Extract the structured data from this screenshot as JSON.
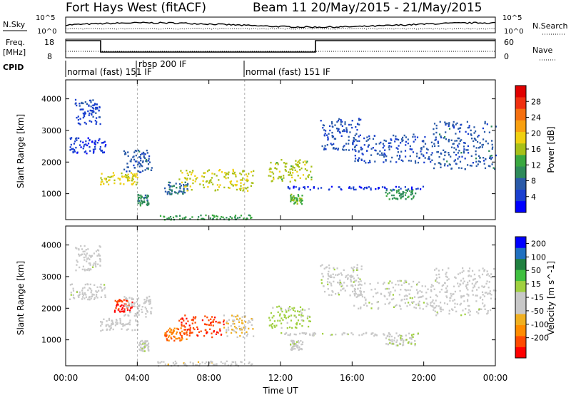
{
  "header": {
    "station": "Fort Hays West (fitACF)",
    "beam_and_dates": "Beam 11  20/May/2015 - 21/May/2015"
  },
  "noise_panel": {
    "left_label": "N.Sky",
    "right_label": "N.Search",
    "y_ticks": [
      "10^5",
      "10^0"
    ]
  },
  "freq_panel": {
    "left_label_line1": "Freq.",
    "left_label_line2": "[MHz]",
    "left_ticks": [
      "18",
      "8"
    ],
    "right_label": "Nave",
    "right_ticks": [
      "60",
      "0"
    ]
  },
  "cpid": {
    "label": "CPID",
    "modes": [
      {
        "text": "normal (fast) 151 IF",
        "start_hour": 0
      },
      {
        "text": "rbsp 200 IF",
        "start_hour": 4
      },
      {
        "text": "normal (fast) 151 IF",
        "start_hour": 10
      }
    ]
  },
  "x_axis": {
    "label": "Time UT",
    "ticks": [
      "00:00",
      "04:00",
      "08:00",
      "12:00",
      "16:00",
      "20:00",
      "00:00"
    ]
  },
  "colors": {
    "power_scale": [
      "#0000ff",
      "#1a3fd0",
      "#2a5aa8",
      "#2e8a5a",
      "#3aa840",
      "#a8c018",
      "#f0d010",
      "#f8a010",
      "#f57010",
      "#f03010",
      "#e00000"
    ],
    "velocity_scale": [
      "#ff0000",
      "#ff4a00",
      "#ff8c00",
      "#f0b020",
      "#c8c8c8",
      "#c8c8c8",
      "#a0d040",
      "#40c040",
      "#208040",
      "#2070c0",
      "#0000ff"
    ]
  },
  "chart_data": [
    {
      "type": "heatmap",
      "title": "Power",
      "ylabel": "Slant Range [km]",
      "xlabel": "",
      "x_range_hours": [
        0,
        24
      ],
      "ylim": [
        180,
        4600
      ],
      "y_ticks": [
        1000,
        2000,
        3000,
        4000
      ],
      "colorbar": {
        "label": "Power [dB]",
        "ticks": [
          4,
          8,
          12,
          16,
          20,
          24,
          28
        ],
        "range": [
          0,
          32
        ]
      },
      "regions": [
        {
          "t0": 0.5,
          "t1": 1.9,
          "r0": 3200,
          "r1": 4000,
          "value": 5
        },
        {
          "t0": 0.2,
          "t1": 2.2,
          "r0": 2300,
          "r1": 2800,
          "value": 4
        },
        {
          "t0": 1.9,
          "t1": 4.0,
          "r0": 1300,
          "r1": 1700,
          "value": 18
        },
        {
          "t0": 3.2,
          "t1": 4.8,
          "r0": 1700,
          "r1": 2400,
          "value": 7
        },
        {
          "t0": 4.0,
          "t1": 4.6,
          "r0": 650,
          "r1": 1000,
          "value": 10
        },
        {
          "t0": 5.5,
          "t1": 6.8,
          "r0": 1000,
          "r1": 1400,
          "value": 8
        },
        {
          "t0": 6.3,
          "t1": 10.5,
          "r0": 1100,
          "r1": 1800,
          "value": 17
        },
        {
          "t0": 5.0,
          "t1": 10.5,
          "r0": 200,
          "r1": 350,
          "value": 12
        },
        {
          "t0": 11.3,
          "t1": 13.7,
          "r0": 1400,
          "r1": 2100,
          "value": 16
        },
        {
          "t0": 12.5,
          "t1": 13.2,
          "r0": 700,
          "r1": 1000,
          "value": 14
        },
        {
          "t0": 14.2,
          "t1": 16.5,
          "r0": 2400,
          "r1": 3400,
          "value": 6
        },
        {
          "t0": 16.0,
          "t1": 20.5,
          "r0": 2000,
          "r1": 2900,
          "value": 6
        },
        {
          "t0": 17.8,
          "t1": 19.5,
          "r0": 850,
          "r1": 1150,
          "value": 11
        },
        {
          "t0": 20.5,
          "t1": 24.0,
          "r0": 1800,
          "r1": 3300,
          "value": 7
        },
        {
          "t0": 12.0,
          "t1": 20.0,
          "r0": 1150,
          "r1": 1250,
          "value": 3
        }
      ]
    },
    {
      "type": "heatmap",
      "title": "Velocity",
      "ylabel": "Slant Range [km]",
      "xlabel": "Time UT",
      "x_range_hours": [
        0,
        24
      ],
      "ylim": [
        180,
        4600
      ],
      "y_ticks": [
        1000,
        2000,
        3000,
        4000
      ],
      "colorbar": {
        "label": "Velocity [m s^-1]",
        "ticks": [
          -200,
          -100,
          -50,
          -15,
          15,
          50,
          100,
          200
        ],
        "range": [
          -250,
          250
        ]
      },
      "regions": [
        {
          "t0": 0.5,
          "t1": 1.9,
          "r0": 3200,
          "r1": 4000,
          "value": -5
        },
        {
          "t0": 0.2,
          "t1": 2.2,
          "r0": 2300,
          "r1": 2800,
          "value": -5
        },
        {
          "t0": 1.9,
          "t1": 4.0,
          "r0": 1300,
          "r1": 1700,
          "value": -35
        },
        {
          "t0": 2.7,
          "t1": 3.7,
          "r0": 1900,
          "r1": 2300,
          "value": -210
        },
        {
          "t0": 3.2,
          "t1": 4.8,
          "r0": 1700,
          "r1": 2400,
          "value": -40
        },
        {
          "t0": 4.0,
          "t1": 4.6,
          "r0": 650,
          "r1": 1000,
          "value": 0
        },
        {
          "t0": 5.5,
          "t1": 6.8,
          "r0": 1000,
          "r1": 1400,
          "value": -150
        },
        {
          "t0": 6.3,
          "t1": 8.8,
          "r0": 1100,
          "r1": 1800,
          "value": -190
        },
        {
          "t0": 8.8,
          "t1": 10.5,
          "r0": 1100,
          "r1": 1800,
          "value": -60
        },
        {
          "t0": 5.0,
          "t1": 10.5,
          "r0": 200,
          "r1": 350,
          "value": -40
        },
        {
          "t0": 11.3,
          "t1": 13.7,
          "r0": 1400,
          "r1": 2100,
          "value": 40
        },
        {
          "t0": 12.5,
          "t1": 13.2,
          "r0": 700,
          "r1": 1000,
          "value": 0
        },
        {
          "t0": 14.2,
          "t1": 16.5,
          "r0": 2400,
          "r1": 3400,
          "value": 0
        },
        {
          "t0": 16.0,
          "t1": 20.5,
          "r0": 2000,
          "r1": 2900,
          "value": 0
        },
        {
          "t0": 17.8,
          "t1": 19.5,
          "r0": 850,
          "r1": 1150,
          "value": 0
        },
        {
          "t0": 20.5,
          "t1": 24.0,
          "r0": 1800,
          "r1": 3300,
          "value": -5
        },
        {
          "t0": 12.0,
          "t1": 20.0,
          "r0": 1150,
          "r1": 1250,
          "value": 0
        }
      ]
    }
  ]
}
